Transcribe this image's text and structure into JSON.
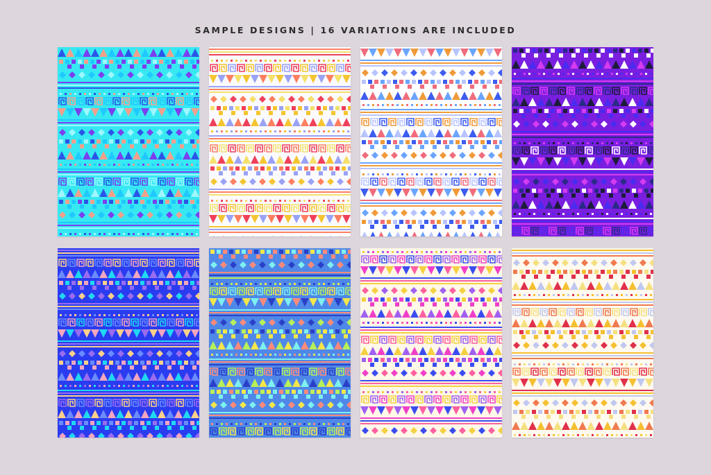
{
  "header": {
    "title": "SAMPLE DESIGNS | 16 VARIATIONS ARE INCLUDED"
  },
  "designs": [
    {
      "name": "aqua",
      "bg": "#37e8f2",
      "palette": [
        "#2a56e8",
        "#f2a08c",
        "#1fc8ff",
        "#7b3ff0",
        "#9ff7ff"
      ]
    },
    {
      "name": "white-warm",
      "bg": "#fbfbff",
      "palette": [
        "#f0405a",
        "#f5c531",
        "#9aa2f5",
        "#ff7f60",
        "#f5e06a"
      ]
    },
    {
      "name": "white-cool",
      "bg": "#ffffff",
      "palette": [
        "#3d5cf0",
        "#f06c7c",
        "#6aa4ff",
        "#f09a3a",
        "#b8c4ff"
      ]
    },
    {
      "name": "violet",
      "bg": "#7a1ee0",
      "palette": [
        "#1c1c3a",
        "#ffffff",
        "#4a2cf0",
        "#d43cf0",
        "#2a2a88"
      ]
    },
    {
      "name": "royal-blue",
      "bg": "#2a3cf0",
      "palette": [
        "#f2a6c0",
        "#20d8f2",
        "#9a6cf0",
        "#ffd08a",
        "#6a8cff"
      ]
    },
    {
      "name": "sky-blue",
      "bg": "#4f88e8",
      "palette": [
        "#f5e64a",
        "#7ef0f0",
        "#ff8a7a",
        "#2a40c8",
        "#b8f05a"
      ]
    },
    {
      "name": "cream-pink",
      "bg": "#fff8e8",
      "palette": [
        "#f040c8",
        "#3a4cf0",
        "#ff60a0",
        "#f5d040",
        "#a060f0"
      ]
    },
    {
      "name": "cream-warm",
      "bg": "#fffaf0",
      "palette": [
        "#e0304a",
        "#f5c030",
        "#c0c8f0",
        "#f07a50",
        "#f5e080"
      ]
    }
  ]
}
